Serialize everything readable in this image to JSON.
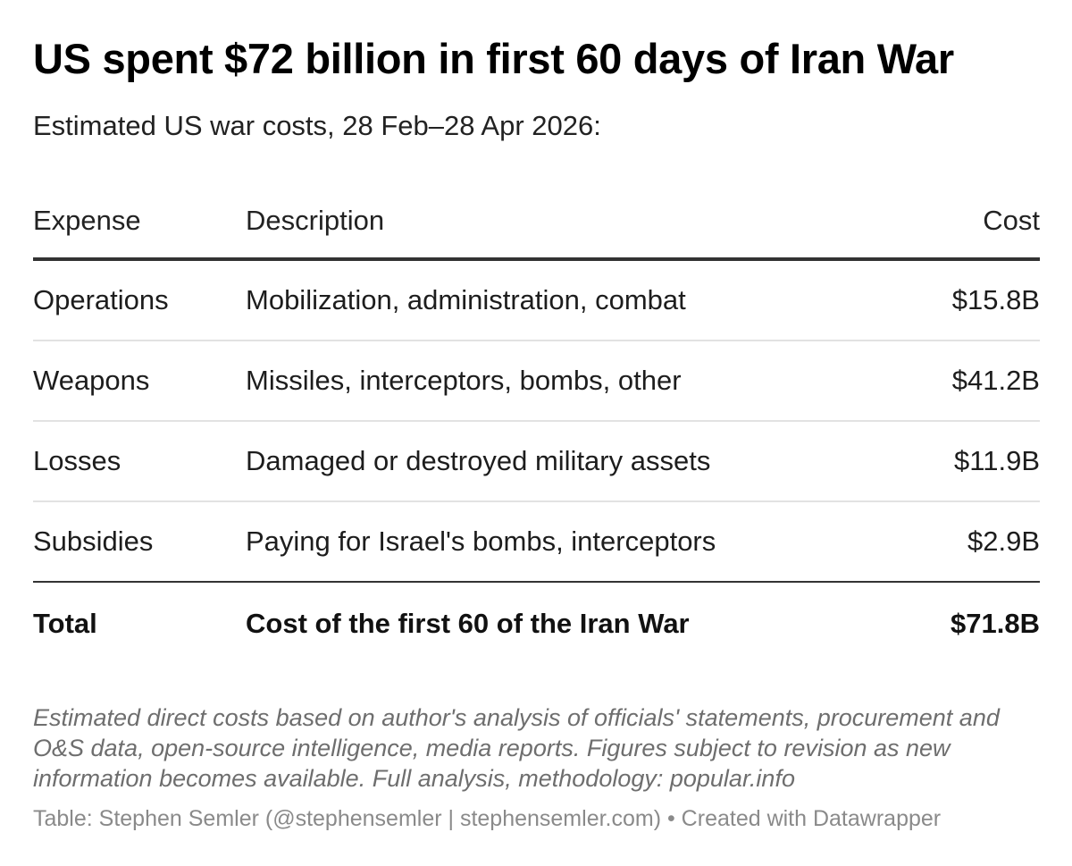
{
  "title": "US spent $72 billion in first 60 days of Iran War",
  "subtitle": "Estimated US war costs, 28 Feb–28 Apr 2026:",
  "chart_data": {
    "type": "table",
    "columns": [
      "Expense",
      "Description",
      "Cost"
    ],
    "rows": [
      {
        "expense": "Operations",
        "description": "Mobilization, administration, combat",
        "cost": "$15.8B",
        "value": 15.8
      },
      {
        "expense": "Weapons",
        "description": "Missiles, interceptors, bombs, other",
        "cost": "$41.2B",
        "value": 41.2
      },
      {
        "expense": "Losses",
        "description": "Damaged or destroyed military assets",
        "cost": "$11.9B",
        "value": 11.9
      },
      {
        "expense": "Subsidies",
        "description": "Paying for Israel's bombs, interceptors",
        "cost": "$2.9B",
        "value": 2.9
      }
    ],
    "total": {
      "expense": "Total",
      "description": "Cost of the first 60 of the Iran War",
      "cost": "$71.8B",
      "value": 71.8
    },
    "unit": "billion USD"
  },
  "notes": "Estimated direct costs based on author's analysis of officials' statements, procurement and O&S data, open-source intelligence, media reports. Figures subject to revision as new information becomes available. Full analysis, methodology: popular.info",
  "source": "Table: Stephen Semler (@stephensemler | stephensemler.com) • Created with Datawrapper",
  "colors": {
    "text": "#1d1d1d",
    "rule_strong": "#333333",
    "rule_light": "#e2e2e2",
    "notes": "#6e6e6e",
    "source": "#8a8a8a"
  }
}
